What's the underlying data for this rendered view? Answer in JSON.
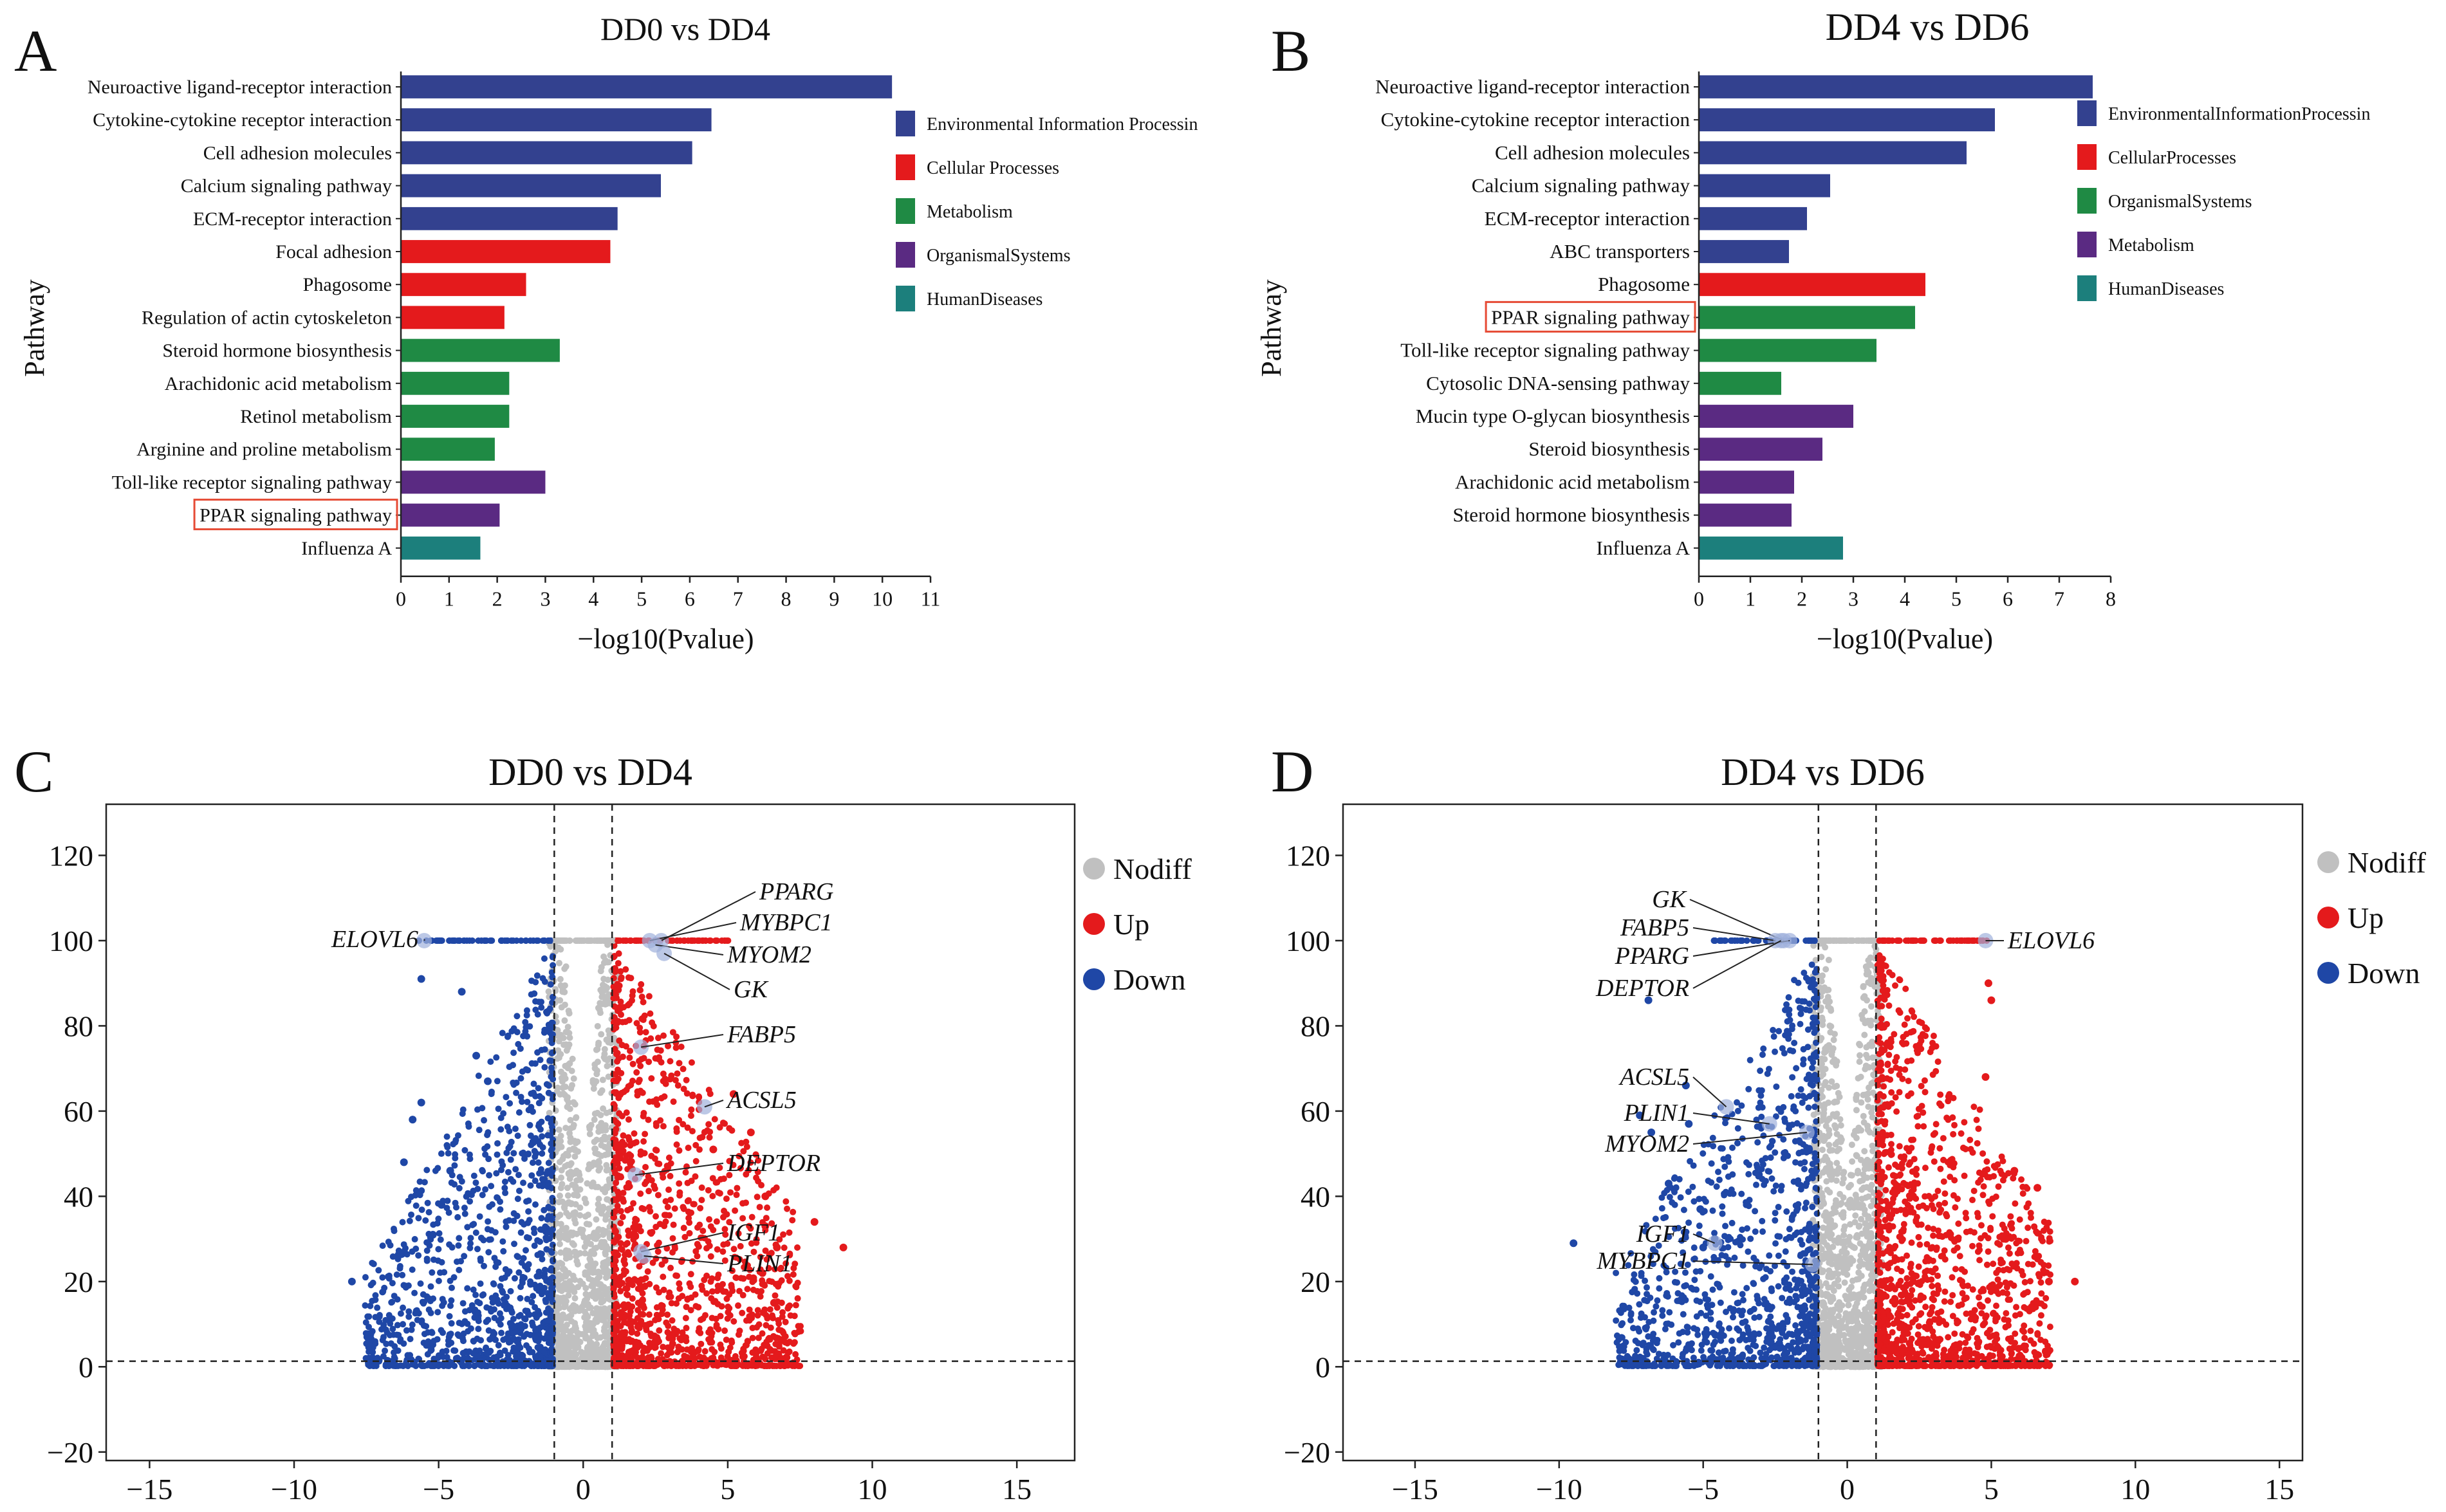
{
  "chart_data": [
    {
      "panel": "A",
      "type": "bar",
      "orientation": "horizontal",
      "title": "DD0 vs DD4",
      "xlabel": "−log10(Pvalue)",
      "ylabel": "Pathway",
      "xlim": [
        0,
        11
      ],
      "xticks": [
        "0",
        "1",
        "2",
        "3",
        "4",
        "5",
        "6",
        "7",
        "8",
        "9",
        "10",
        "11"
      ],
      "legend": [
        {
          "label": "Environmental Information Processin",
          "color": "#33418f"
        },
        {
          "label": "Cellular Processes",
          "color": "#e41a1c"
        },
        {
          "label": "Metabolism",
          "color": "#1f8a44"
        },
        {
          "label": "OrganismalSystems",
          "color": "#5a2a82"
        },
        {
          "label": "HumanDiseases",
          "color": "#1c7f7c"
        }
      ],
      "bars": [
        {
          "label": "Neuroactive ligand-receptor interaction",
          "value": 10.2,
          "category": "Environmental Information Processin",
          "highlight": false
        },
        {
          "label": "Cytokine-cytokine receptor interaction",
          "value": 6.45,
          "category": "Environmental Information Processin",
          "highlight": false
        },
        {
          "label": "Cell adhesion molecules",
          "value": 6.05,
          "category": "Environmental Information Processin",
          "highlight": false
        },
        {
          "label": "Calcium signaling pathway",
          "value": 5.4,
          "category": "Environmental Information Processin",
          "highlight": false
        },
        {
          "label": "ECM-receptor interaction",
          "value": 4.5,
          "category": "Environmental Information Processin",
          "highlight": false
        },
        {
          "label": "Focal adhesion",
          "value": 4.35,
          "category": "Cellular Processes",
          "highlight": false
        },
        {
          "label": "Phagosome",
          "value": 2.6,
          "category": "Cellular Processes",
          "highlight": false
        },
        {
          "label": "Regulation of actin cytoskeleton",
          "value": 2.15,
          "category": "Cellular Processes",
          "highlight": false
        },
        {
          "label": "Steroid hormone biosynthesis",
          "value": 3.3,
          "category": "Metabolism",
          "highlight": false
        },
        {
          "label": "Arachidonic acid metabolism",
          "value": 2.25,
          "category": "Metabolism",
          "highlight": false
        },
        {
          "label": "Retinol metabolism",
          "value": 2.25,
          "category": "Metabolism",
          "highlight": false
        },
        {
          "label": "Arginine and proline metabolism",
          "value": 1.95,
          "category": "Metabolism",
          "highlight": false
        },
        {
          "label": "Toll-like receptor signaling pathway",
          "value": 3.0,
          "category": "OrganismalSystems",
          "highlight": false
        },
        {
          "label": "PPAR signaling pathway",
          "value": 2.05,
          "category": "OrganismalSystems",
          "highlight": true
        },
        {
          "label": "Influenza A",
          "value": 1.65,
          "category": "HumanDiseases",
          "highlight": false
        }
      ]
    },
    {
      "panel": "B",
      "type": "bar",
      "orientation": "horizontal",
      "title": "DD4 vs DD6",
      "xlabel": "−log10(Pvalue)",
      "ylabel": "Pathway",
      "xlim": [
        0,
        8
      ],
      "xticks": [
        "0",
        "1",
        "2",
        "3",
        "4",
        "5",
        "6",
        "7",
        "8"
      ],
      "legend": [
        {
          "label": "EnvironmentalInformationProcessin",
          "color": "#33418f"
        },
        {
          "label": "CellularProcesses",
          "color": "#e41a1c"
        },
        {
          "label": "OrganismalSystems",
          "color": "#1f8a44"
        },
        {
          "label": "Metabolism",
          "color": "#5a2a82"
        },
        {
          "label": "HumanDiseases",
          "color": "#1c7f7c"
        }
      ],
      "bars": [
        {
          "label": "Neuroactive ligand-receptor interaction",
          "value": 7.65,
          "category": "EnvironmentalInformationProcessin",
          "highlight": false
        },
        {
          "label": "Cytokine-cytokine receptor interaction",
          "value": 5.75,
          "category": "EnvironmentalInformationProcessin",
          "highlight": false
        },
        {
          "label": "Cell adhesion molecules",
          "value": 5.2,
          "category": "EnvironmentalInformationProcessin",
          "highlight": false
        },
        {
          "label": "Calcium signaling pathway",
          "value": 2.55,
          "category": "EnvironmentalInformationProcessin",
          "highlight": false
        },
        {
          "label": "ECM-receptor interaction",
          "value": 2.1,
          "category": "EnvironmentalInformationProcessin",
          "highlight": false
        },
        {
          "label": "ABC transporters",
          "value": 1.75,
          "category": "EnvironmentalInformationProcessin",
          "highlight": false
        },
        {
          "label": "Phagosome",
          "value": 4.4,
          "category": "CellularProcesses",
          "highlight": false
        },
        {
          "label": "PPAR signaling pathway",
          "value": 4.2,
          "category": "OrganismalSystems",
          "highlight": true
        },
        {
          "label": "Toll-like receptor signaling pathway",
          "value": 3.45,
          "category": "OrganismalSystems",
          "highlight": false
        },
        {
          "label": "Cytosolic DNA-sensing pathway",
          "value": 1.6,
          "category": "OrganismalSystems",
          "highlight": false
        },
        {
          "label": "Mucin type O-glycan biosynthesis",
          "value": 3.0,
          "category": "Metabolism",
          "highlight": false
        },
        {
          "label": "Steroid biosynthesis",
          "value": 2.4,
          "category": "Metabolism",
          "highlight": false
        },
        {
          "label": "Arachidonic acid metabolism",
          "value": 1.85,
          "category": "Metabolism",
          "highlight": false
        },
        {
          "label": "Steroid hormone biosynthesis",
          "value": 1.8,
          "category": "Metabolism",
          "highlight": false
        },
        {
          "label": "Influenza A",
          "value": 2.8,
          "category": "HumanDiseases",
          "highlight": false
        }
      ]
    },
    {
      "panel": "C",
      "type": "scatter",
      "title": "DD0 vs DD4",
      "xlim": [
        -16.5,
        17
      ],
      "ylim": [
        -22,
        132
      ],
      "xticks": [
        -15,
        -10,
        -5,
        0,
        5,
        10,
        15
      ],
      "yticks": [
        -20,
        0,
        20,
        40,
        60,
        80,
        100,
        120
      ],
      "thresholds": {
        "x": [
          -1,
          1
        ],
        "y": 1.3
      },
      "legend": [
        {
          "label": "Nodiff",
          "color": "#c0c0c0"
        },
        {
          "label": "Up",
          "color": "#e41a1c"
        },
        {
          "label": "Down",
          "color": "#1f47a6"
        }
      ],
      "up_outliers": [
        [
          9.0,
          28
        ],
        [
          8.0,
          34
        ],
        [
          6.3,
          33
        ],
        [
          6.7,
          28
        ],
        [
          6.3,
          40
        ],
        [
          5.2,
          64
        ],
        [
          4.5,
          51
        ],
        [
          6.2,
          22
        ],
        [
          5.8,
          55
        ],
        [
          6.6,
          15
        ]
      ],
      "down_outliers": [
        [
          -8.0,
          20
        ],
        [
          -6.2,
          48
        ],
        [
          -5.9,
          58
        ],
        [
          -5.6,
          62
        ],
        [
          -5.6,
          91
        ],
        [
          -4.2,
          88
        ],
        [
          -3.7,
          73
        ],
        [
          -3.3,
          67
        ],
        [
          -4.6,
          46
        ],
        [
          -4.9,
          38
        ],
        [
          -5.2,
          31
        ]
      ],
      "labels": [
        {
          "gene": "PPARG",
          "x": 2.7,
          "y": 100
        },
        {
          "gene": "MYBPC1",
          "x": 2.3,
          "y": 100
        },
        {
          "gene": "MYOM2",
          "x": 2.5,
          "y": 99
        },
        {
          "gene": "GK",
          "x": 2.8,
          "y": 97
        },
        {
          "gene": "FABP5",
          "x": 2.0,
          "y": 75
        },
        {
          "gene": "ACSL5",
          "x": 4.2,
          "y": 61
        },
        {
          "gene": "DEPTOR",
          "x": 1.8,
          "y": 45
        },
        {
          "gene": "IGF1",
          "x": 2.0,
          "y": 27
        },
        {
          "gene": "PLIN1",
          "x": 2.1,
          "y": 26
        },
        {
          "gene": "ELOVL6",
          "x": -5.5,
          "y": 100
        }
      ]
    },
    {
      "panel": "D",
      "type": "scatter",
      "title": "DD4 vs DD6",
      "xlim": [
        -17.5,
        15.8
      ],
      "ylim": [
        -22,
        132
      ],
      "xticks": [
        -15,
        -10,
        -5,
        0,
        5,
        10,
        15
      ],
      "yticks": [
        -20,
        0,
        20,
        40,
        60,
        80,
        100,
        120
      ],
      "thresholds": {
        "x": [
          -1,
          1
        ],
        "y": 1.3
      },
      "legend": [
        {
          "label": "Nodiff",
          "color": "#c0c0c0"
        },
        {
          "label": "Up",
          "color": "#e41a1c"
        },
        {
          "label": "Down",
          "color": "#1f47a6"
        }
      ],
      "up_outliers": [
        [
          7.9,
          20
        ],
        [
          6.4,
          14
        ],
        [
          5.8,
          46
        ],
        [
          5.0,
          86
        ],
        [
          4.9,
          90
        ],
        [
          4.8,
          68
        ],
        [
          6.6,
          42
        ],
        [
          5.5,
          30
        ],
        [
          7.0,
          20
        ]
      ],
      "down_outliers": [
        [
          -9.5,
          29
        ],
        [
          -7.2,
          59
        ],
        [
          -6.8,
          55
        ],
        [
          -6.2,
          43
        ],
        [
          -5.6,
          66
        ],
        [
          -5.5,
          57
        ],
        [
          -5.1,
          37
        ],
        [
          -5.0,
          28
        ],
        [
          -4.6,
          30
        ],
        [
          -6.9,
          86
        ]
      ],
      "labels": [
        {
          "gene": "GK",
          "x": -2.2,
          "y": 100
        },
        {
          "gene": "FABP5",
          "x": -2.5,
          "y": 100
        },
        {
          "gene": "PPARG",
          "x": -2.0,
          "y": 100
        },
        {
          "gene": "DEPTOR",
          "x": -2.3,
          "y": 100
        },
        {
          "gene": "ACSL5",
          "x": -4.2,
          "y": 61
        },
        {
          "gene": "PLIN1",
          "x": -2.7,
          "y": 57
        },
        {
          "gene": "MYOM2",
          "x": -1.4,
          "y": 55
        },
        {
          "gene": "IGF1",
          "x": -4.6,
          "y": 29
        },
        {
          "gene": "MYBPC1",
          "x": -1.2,
          "y": 24
        },
        {
          "gene": "ELOVL6",
          "x": 4.8,
          "y": 100
        }
      ]
    }
  ]
}
